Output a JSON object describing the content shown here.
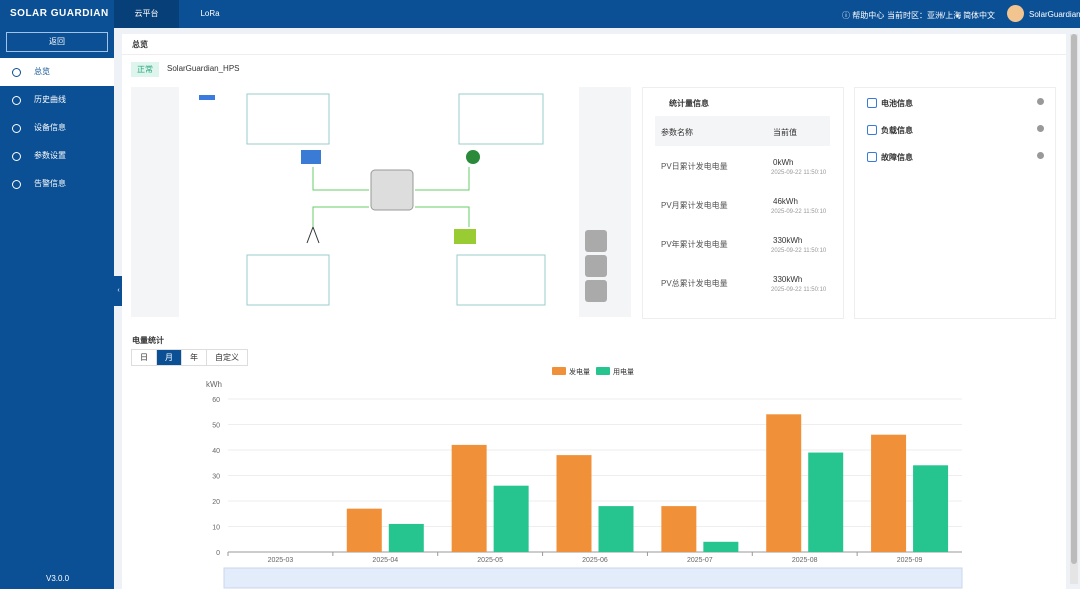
{
  "header": {
    "logo": "SOLAR GUARDIAN",
    "tabs": [
      "云平台",
      "LoRa"
    ],
    "help": "帮助中心",
    "timezone": "当前时区：亚洲/上海",
    "language": "简体中文",
    "user": "SolarGuardian"
  },
  "sidebar": {
    "back": "返回",
    "items": [
      "总览",
      "历史曲线",
      "设备信息",
      "参数设置",
      "告警信息"
    ],
    "version": "V3.0.0"
  },
  "content": {
    "title": "总览",
    "status": "正常",
    "device": "SolarGuardian_HPS",
    "stats": {
      "title": "统计量信息",
      "columns": [
        "参数名称",
        "当前值"
      ],
      "rows": [
        [
          "PV日累计发电电量",
          "0kWh",
          "2025-09-22 11:50:10"
        ],
        [
          "PV月累计发电电量",
          "46kWh",
          "2025-09-22 11:50:10"
        ],
        [
          "PV年累计发电电量",
          "330kWh",
          "2025-09-22 11:50:10"
        ],
        [
          "PV总累计发电电量",
          "330kWh",
          "2025-09-22 11:50:10"
        ]
      ]
    },
    "info": [
      "电池信息",
      "负载信息",
      "故障信息"
    ],
    "energy": {
      "title": "电量统计",
      "tabs": [
        "日",
        "月",
        "年",
        "自定义"
      ]
    }
  },
  "chart_data": {
    "type": "bar",
    "y_label": "kWh",
    "categories": [
      "2025-03",
      "2025-04",
      "2025-05",
      "2025-06",
      "2025-07",
      "2025-08",
      "2025-09"
    ],
    "series": [
      {
        "name": "发电量",
        "color": "#f0913a",
        "values": [
          0,
          17,
          42,
          38,
          18,
          54,
          46
        ]
      },
      {
        "name": "用电量",
        "color": "#26c48f",
        "values": [
          0,
          11,
          26,
          18,
          4,
          39,
          34
        ]
      }
    ],
    "ylim": [
      0,
      60
    ],
    "yticks": [
      0,
      10,
      20,
      30,
      40,
      50,
      60
    ],
    "grid": true
  }
}
